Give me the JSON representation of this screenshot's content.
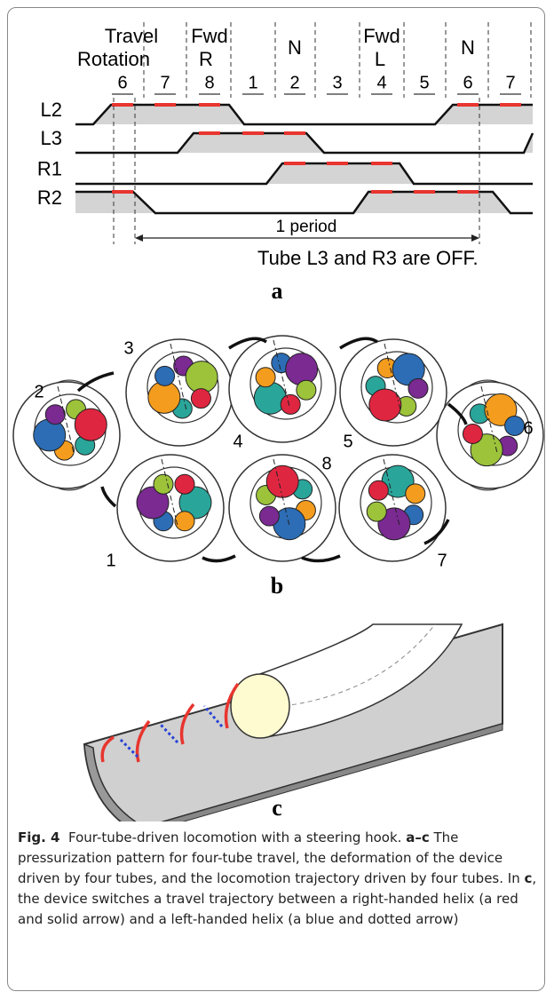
{
  "panel_a": {
    "header": [
      "Travel",
      "Rotation",
      "Fwd",
      "R",
      "N",
      "Fwd",
      "L",
      "N"
    ],
    "steps": [
      "6",
      "7",
      "8",
      "1",
      "2",
      "3",
      "4",
      "5",
      "6",
      "7"
    ],
    "rows": [
      "L2",
      "L3",
      "R1",
      "R2"
    ],
    "period": "1 period",
    "note": "Tube L3 and R3 are OFF.",
    "label": "a"
  },
  "panel_b": {
    "states": [
      "1",
      "2",
      "3",
      "4",
      "5",
      "6",
      "7",
      "8"
    ],
    "label": "b"
  },
  "panel_c": {
    "label": "c"
  },
  "caption": {
    "fig": "Fig. 4",
    "title": "Four-tube-driven locomotion with a steering hook.",
    "range": "a–c",
    "text1": "The pressurization pattern for four-tube travel, the deformation of the device driven by four tubes, and the locomotion trajectory driven by four tubes. In",
    "panel": "c",
    "text2": ", the device switches a travel trajectory between a right-handed helix (a red and solid arrow) and a left-handed helix (a blue and dotted arrow)"
  }
}
